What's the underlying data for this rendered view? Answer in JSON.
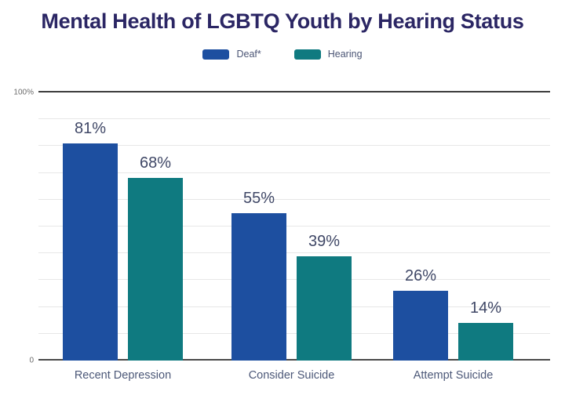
{
  "title": "Mental Health of LGBTQ Youth by Hearing Status",
  "axis": {
    "y_top_label": "100%",
    "y_bottom_label": "0"
  },
  "colors": {
    "deaf_blue": "#1d4fa0",
    "hearing_teal": "#0f7a80",
    "title_navy": "#2b2664",
    "value_label": "#3f4766",
    "category_label": "#4c5878",
    "gridline": "#e7e7e7",
    "axis_line": "#3d3d3d"
  },
  "chart_data": {
    "type": "bar",
    "title": "Mental Health of LGBTQ Youth by Hearing Status",
    "categories": [
      "Recent Depression",
      "Consider Suicide",
      "Attempt Suicide"
    ],
    "series": [
      {
        "name": "Deaf*",
        "color": "#1d4fa0",
        "values": [
          81,
          55,
          26
        ]
      },
      {
        "name": "Hearing",
        "color": "#0f7a80",
        "values": [
          68,
          39,
          14
        ]
      }
    ],
    "value_suffix": "%",
    "xlabel": "",
    "ylabel": "",
    "ylim": [
      0,
      100
    ],
    "grid_step": 10,
    "grid": true,
    "legend_position": "top",
    "y_tick_labels_shown": [
      "100%",
      "0"
    ]
  }
}
